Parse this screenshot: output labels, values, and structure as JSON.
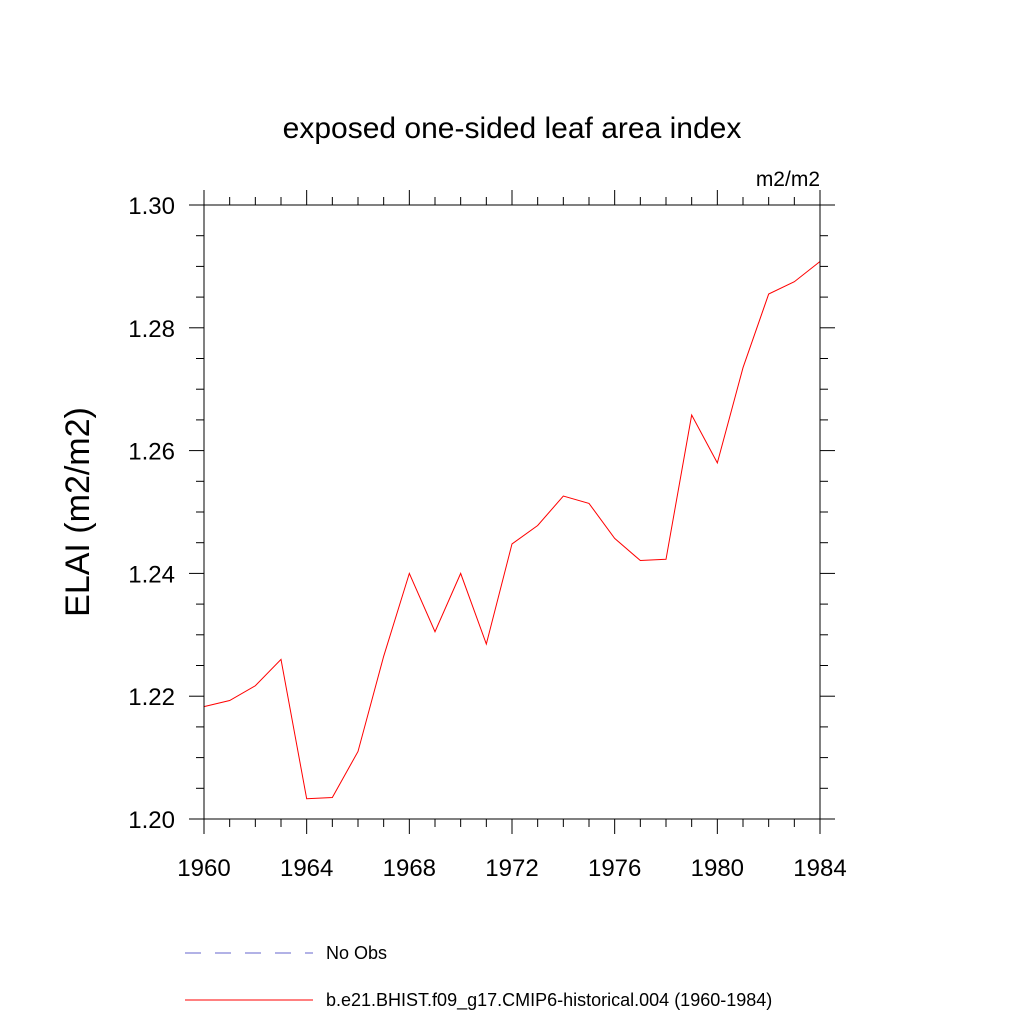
{
  "chart_data": {
    "type": "line",
    "title": "exposed one-sided leaf area index",
    "units": "m2/m2",
    "ylabel": "ELAI  (m2/m2)",
    "xlabel": "",
    "xlim": [
      1960,
      1984
    ],
    "ylim": [
      1.2,
      1.3
    ],
    "x_ticks": [
      "1960",
      "1964",
      "1968",
      "1972",
      "1976",
      "1980",
      "1984"
    ],
    "y_ticks": [
      "1.20",
      "1.22",
      "1.24",
      "1.26",
      "1.28",
      "1.30"
    ],
    "x": [
      1960,
      1961,
      1962,
      1963,
      1964,
      1965,
      1966,
      1967,
      1968,
      1969,
      1970,
      1971,
      1972,
      1973,
      1974,
      1975,
      1976,
      1977,
      1978,
      1979,
      1980,
      1981,
      1982,
      1983,
      1984
    ],
    "series": [
      {
        "name": "b.e21.BHIST.f09_g17.CMIP6-historical.004 (1960-1984)",
        "color": "#ff0000",
        "style": "solid",
        "values": [
          1.2183,
          1.2193,
          1.2217,
          1.226,
          1.2033,
          1.2035,
          1.211,
          1.2265,
          1.24,
          1.2305,
          1.24,
          1.2285,
          1.2448,
          1.2478,
          1.2526,
          1.2514,
          1.2457,
          1.2421,
          1.2423,
          1.2658,
          1.258,
          1.2735,
          1.2855,
          1.2875,
          1.2908
        ]
      }
    ],
    "legend": [
      {
        "label": "No Obs",
        "color": "#6666cc",
        "style": "dashed"
      },
      {
        "label": "b.e21.BHIST.f09_g17.CMIP6-historical.004 (1960-1984)",
        "color": "#ff0000",
        "style": "solid"
      }
    ],
    "legend_position": "bottom",
    "grid": false
  }
}
